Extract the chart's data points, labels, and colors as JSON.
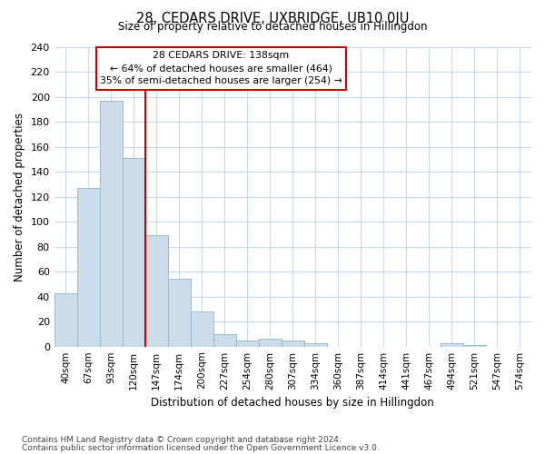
{
  "title": "28, CEDARS DRIVE, UXBRIDGE, UB10 0JU",
  "subtitle": "Size of property relative to detached houses in Hillingdon",
  "xlabel": "Distribution of detached houses by size in Hillingdon",
  "ylabel": "Number of detached properties",
  "bar_color": "#ccdce8",
  "bar_edge_color": "#99bbcc",
  "categories": [
    "40sqm",
    "67sqm",
    "93sqm",
    "120sqm",
    "147sqm",
    "174sqm",
    "200sqm",
    "227sqm",
    "254sqm",
    "280sqm",
    "307sqm",
    "334sqm",
    "360sqm",
    "387sqm",
    "414sqm",
    "441sqm",
    "467sqm",
    "494sqm",
    "521sqm",
    "547sqm",
    "574sqm"
  ],
  "values": [
    43,
    127,
    197,
    151,
    89,
    54,
    28,
    10,
    5,
    6,
    5,
    3,
    0,
    0,
    0,
    0,
    0,
    3,
    1,
    0,
    0
  ],
  "ylim": [
    0,
    240
  ],
  "yticks": [
    0,
    20,
    40,
    60,
    80,
    100,
    120,
    140,
    160,
    180,
    200,
    220,
    240
  ],
  "vline_color": "#cc0000",
  "vline_index": 3.5,
  "annotation_title": "28 CEDARS DRIVE: 138sqm",
  "annotation_line1": "← 64% of detached houses are smaller (464)",
  "annotation_line2": "35% of semi-detached houses are larger (254) →",
  "annotation_box_color": "#ffffff",
  "annotation_box_edge": "#cc0000",
  "footnote1": "Contains HM Land Registry data © Crown copyright and database right 2024.",
  "footnote2": "Contains public sector information licensed under the Open Government Licence v3.0.",
  "background_color": "#ffffff",
  "grid_color": "#c8d8e8"
}
